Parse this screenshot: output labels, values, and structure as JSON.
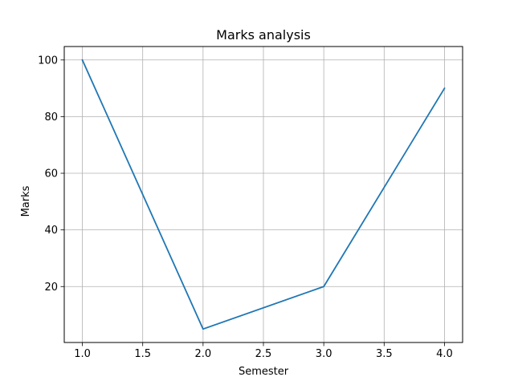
{
  "chart_data": {
    "type": "line",
    "title": "Marks analysis",
    "xlabel": "Semester",
    "ylabel": "Marks",
    "x": [
      1.0,
      2.0,
      3.0,
      4.0
    ],
    "series": [
      {
        "values": [
          100,
          5,
          20,
          90
        ],
        "color": "#1f77b4"
      }
    ],
    "xlim": [
      0.85,
      4.15
    ],
    "ylim": [
      0.25,
      104.75
    ],
    "xticks": [
      1.0,
      1.5,
      2.0,
      2.5,
      3.0,
      3.5,
      4.0
    ],
    "xtick_labels": [
      "1.0",
      "1.5",
      "2.0",
      "2.5",
      "3.0",
      "3.5",
      "4.0"
    ],
    "yticks": [
      20,
      40,
      60,
      80,
      100
    ],
    "ytick_labels": [
      "20",
      "40",
      "60",
      "80",
      "100"
    ],
    "grid": true,
    "grid_color": "#b0b0b0",
    "legend": "none"
  }
}
